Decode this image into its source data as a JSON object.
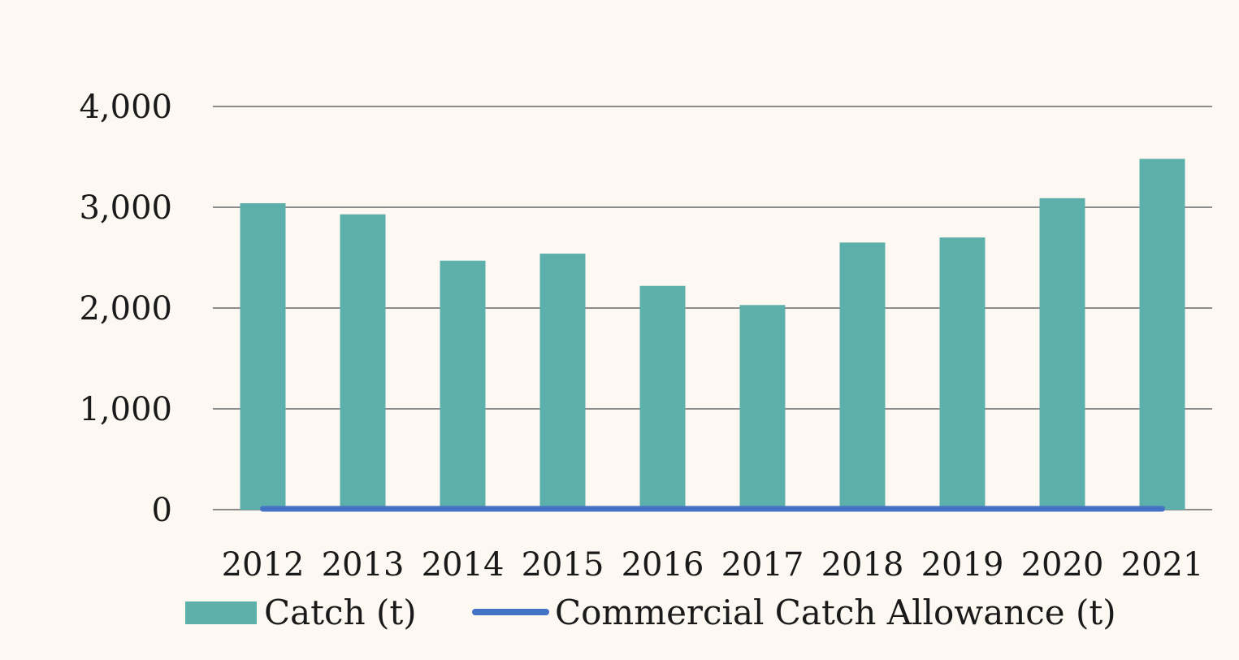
{
  "chart_data": {
    "type": "bar",
    "categories": [
      "2012",
      "2013",
      "2014",
      "2015",
      "2016",
      "2017",
      "2018",
      "2019",
      "2020",
      "2021"
    ],
    "series": [
      {
        "name": "Catch (t)",
        "kind": "bar",
        "color": "#5dafac",
        "values": [
          3040,
          2930,
          2470,
          2540,
          2220,
          2030,
          2650,
          2700,
          3090,
          3480
        ]
      },
      {
        "name": "Commercial Catch Allowance (t)",
        "kind": "line",
        "color": "#4472c4",
        "values": [
          0,
          0,
          0,
          0,
          0,
          0,
          0,
          0,
          0,
          0
        ]
      }
    ],
    "ylim": [
      0,
      4000
    ],
    "yticks": [
      0,
      1000,
      2000,
      3000,
      4000
    ],
    "ytick_labels": [
      "0",
      "1,000",
      "2,000",
      "3,000",
      "4,000"
    ],
    "grid": true,
    "legend_position": "bottom",
    "title": "",
    "xlabel": "",
    "ylabel": "",
    "colors": {
      "background": "#fdf8f1",
      "gridline": "#8c8c8c",
      "text": "#1a1a1a"
    }
  }
}
